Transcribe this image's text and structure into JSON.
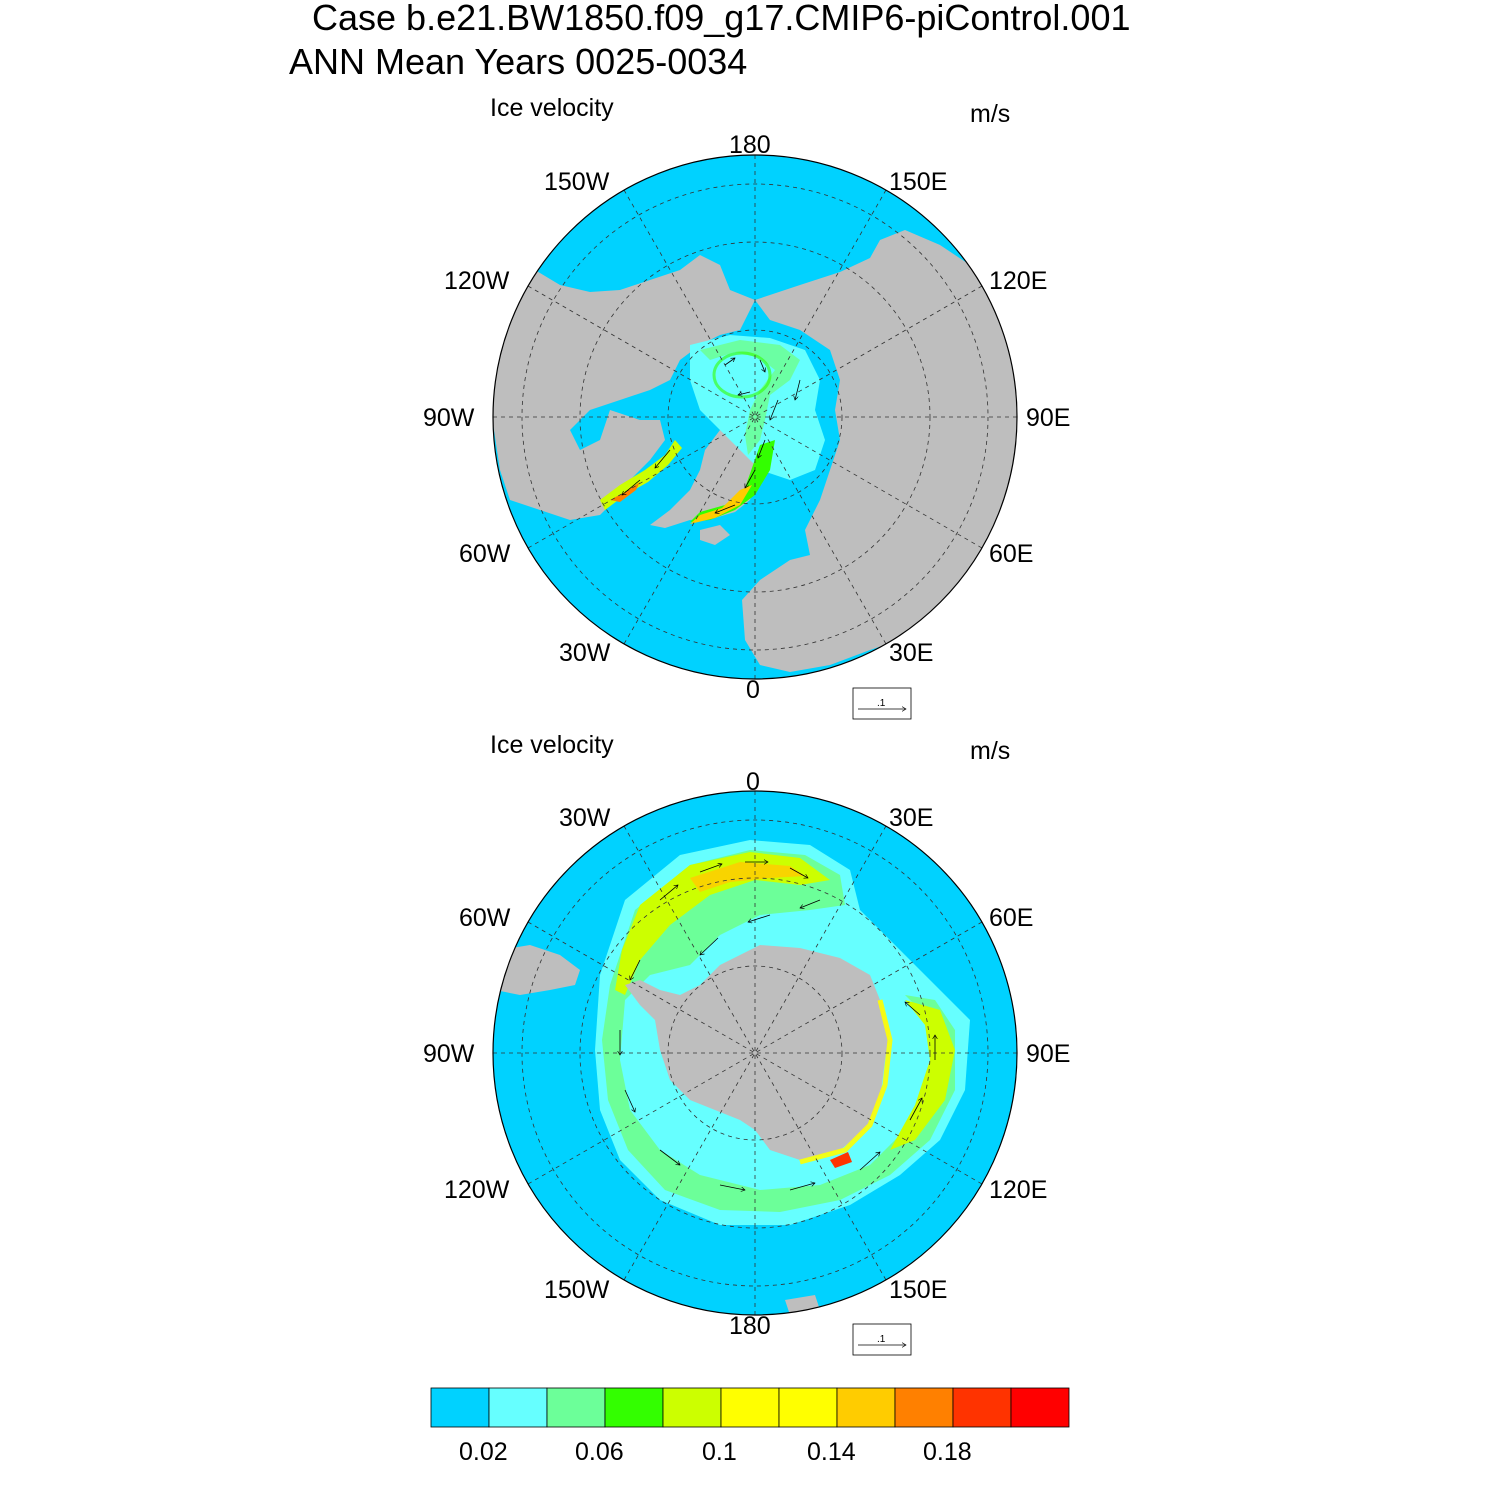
{
  "title": {
    "line1": "Case b.e21.BW1850.f09_g17.CMIP6-piControl.001",
    "line2": "ANN Mean   Years 0025-0034"
  },
  "panels": [
    {
      "id": "north",
      "variable_label": "Ice velocity",
      "units_label": "m/s",
      "lon_labels": {
        "top": "180",
        "tr": "150E",
        "rt": "120E",
        "right": "90E",
        "rb": "60E",
        "br": "30E",
        "bottom": "0",
        "bl": "30W",
        "lb": "60W",
        "left": "90W",
        "lt": "120W",
        "tl": "150W"
      },
      "ref_vector_label": ".1"
    },
    {
      "id": "south",
      "variable_label": "Ice velocity",
      "units_label": "m/s",
      "lon_labels": {
        "top": "0",
        "tr": "30E",
        "rt": "60E",
        "right": "90E",
        "rb": "120E",
        "br": "150E",
        "bottom": "180",
        "bl": "150W",
        "lb": "120W",
        "left": "90W",
        "lt": "60W",
        "tl": "30W"
      },
      "ref_vector_label": ".1"
    }
  ],
  "colorbar": {
    "colors": [
      "#00d2ff",
      "#66ffff",
      "#6cff99",
      "#33ff00",
      "#ccff00",
      "#ffff00",
      "#ffff00",
      "#ffcc00",
      "#ff8000",
      "#ff3300",
      "#ff0000"
    ],
    "tick_labels": [
      "0.02",
      "0.06",
      "0.1",
      "0.14",
      "0.18"
    ]
  },
  "colors": {
    "ocean": "#00d2ff",
    "land": "#bebebe"
  }
}
